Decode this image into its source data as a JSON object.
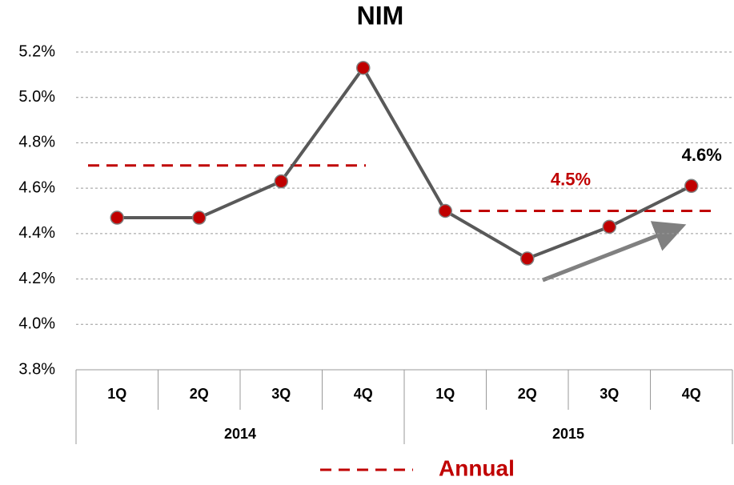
{
  "chart_data": {
    "type": "line",
    "title": "NIM",
    "categories": [
      "1Q",
      "2Q",
      "3Q",
      "4Q",
      "1Q",
      "2Q",
      "3Q",
      "4Q"
    ],
    "groups": [
      {
        "label": "2014",
        "span": 4
      },
      {
        "label": "2015",
        "span": 4
      }
    ],
    "series": [
      {
        "name": "NIM",
        "color": "#595959",
        "marker_color": "#c00000",
        "values": [
          4.47,
          4.47,
          4.63,
          5.13,
          4.5,
          4.29,
          4.43,
          4.61
        ],
        "value_labels": [
          null,
          null,
          null,
          null,
          null,
          null,
          null,
          "4.6%"
        ]
      }
    ],
    "annual": {
      "name": "Annual",
      "color": "#c00000",
      "values": [
        4.7,
        4.5
      ],
      "value_labels": [
        null,
        "4.5%"
      ]
    },
    "ylim": [
      3.8,
      5.2
    ],
    "yticks": [
      {
        "value": 3.8,
        "label": "3.8%"
      },
      {
        "value": 4.0,
        "label": "4.0%"
      },
      {
        "value": 4.2,
        "label": "4.2%"
      },
      {
        "value": 4.4,
        "label": "4.4%"
      },
      {
        "value": 4.6,
        "label": "4.6%"
      },
      {
        "value": 4.8,
        "label": "4.8%"
      },
      {
        "value": 5.0,
        "label": "5.0%"
      },
      {
        "value": 5.2,
        "label": "5.2%"
      }
    ],
    "grid": true
  }
}
